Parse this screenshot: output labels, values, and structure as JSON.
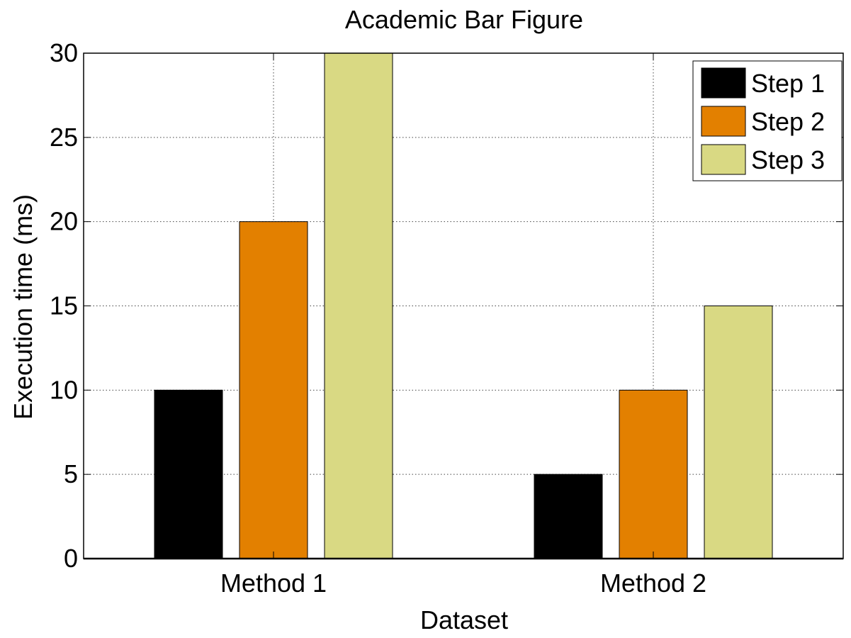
{
  "chart_data": {
    "type": "bar",
    "title": "Academic Bar Figure",
    "xlabel": "Dataset",
    "ylabel": "Execution time (ms)",
    "categories": [
      "Method 1",
      "Method 2"
    ],
    "series": [
      {
        "name": "Step 1",
        "values": [
          10,
          5
        ],
        "color": "#000000"
      },
      {
        "name": "Step 2",
        "values": [
          20,
          10
        ],
        "color": "#E38000"
      },
      {
        "name": "Step 3",
        "values": [
          30,
          15
        ],
        "color": "#D9D983"
      }
    ],
    "ylim": [
      0,
      30
    ],
    "yticks": [
      0,
      5,
      10,
      15,
      20,
      25,
      30
    ],
    "grid": true,
    "legend_position": "top-right"
  }
}
